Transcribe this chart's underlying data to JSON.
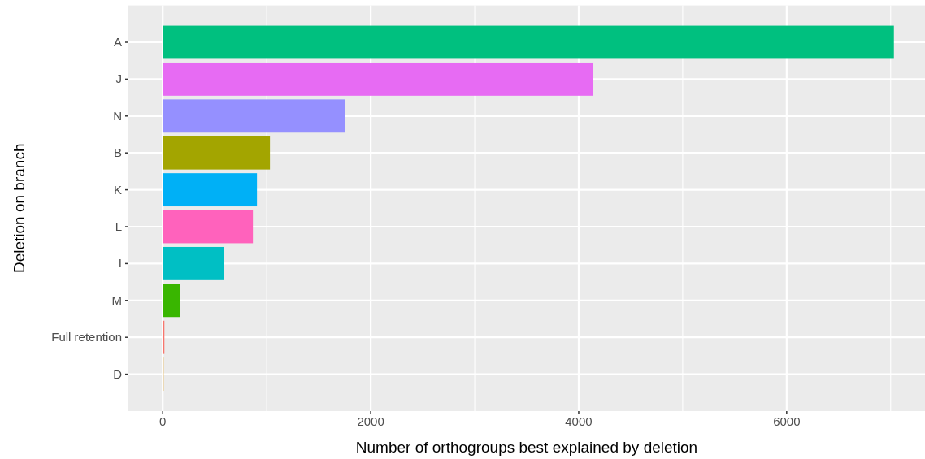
{
  "chart_data": {
    "type": "bar",
    "orientation": "horizontal",
    "xlabel": "Number of orthogroups best explained by deletion",
    "ylabel": "Deletion on branch",
    "categories": [
      "A",
      "J",
      "N",
      "B",
      "K",
      "L",
      "I",
      "M",
      "Full retention",
      "D"
    ],
    "values": [
      7031,
      4141,
      1750,
      1031,
      906,
      867,
      586,
      169,
      16,
      8
    ],
    "colors": [
      "#00c07f",
      "#e76bf3",
      "#9590ff",
      "#a3a500",
      "#00b0f6",
      "#ff62bc",
      "#00bfc4",
      "#39b600",
      "#f8766d",
      "#d89000"
    ],
    "xlim": [
      -330,
      7330
    ],
    "xticks": [
      0,
      2000,
      4000,
      6000
    ],
    "grid": true
  }
}
